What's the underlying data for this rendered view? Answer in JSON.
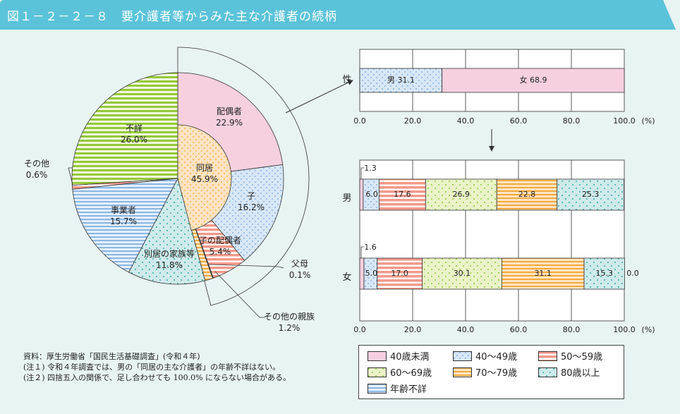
{
  "title": "図１－２－２－８　要介護者等からみた主な介護者の続柄",
  "colors": {
    "title_bar": "#5bc3d9",
    "background": "#e8f4f2"
  },
  "chart_data": [
    {
      "type": "pie",
      "inner": {
        "label": "同居",
        "value": 45.9
      },
      "slices": [
        {
          "label": "配偶者",
          "value": 22.9,
          "pattern": "pink"
        },
        {
          "label": "子",
          "value": 16.2,
          "pattern": "blue-dot"
        },
        {
          "label": "子の配偶者",
          "value": 5.4,
          "pattern": "red-stripe"
        },
        {
          "label": "父母",
          "value": 0.1,
          "pattern": "green-dot"
        },
        {
          "label": "その他の親族",
          "value": 1.2,
          "pattern": "orange-stripe"
        },
        {
          "label": "別居の家族等",
          "value": 11.8,
          "pattern": "teal-dot"
        },
        {
          "label": "事業者",
          "value": 15.7,
          "pattern": "blue-stripe"
        },
        {
          "label": "その他",
          "value": 0.6,
          "pattern": "red-stripe"
        },
        {
          "label": "不詳",
          "value": 26.0,
          "pattern": "green-stripe"
        }
      ],
      "pct_labels": [
        "22.9%",
        "16.2%",
        "5.4%",
        "0.1%",
        "1.2%",
        "11.8%",
        "15.7%",
        "0.6%",
        "26.0%"
      ],
      "inner_pct_label": "45.9%"
    },
    {
      "type": "bar",
      "orientation": "horizontal-stacked",
      "categories": [
        "性"
      ],
      "segments": [
        {
          "label": "男",
          "value": 31.1,
          "pattern": "blue-dot"
        },
        {
          "label": "女",
          "value": 68.9,
          "pattern": "pink"
        }
      ],
      "xlim": [
        0,
        100
      ],
      "ticks": [
        "0.0",
        "20.0",
        "40.0",
        "60.0",
        "80.0",
        "100.0"
      ],
      "unit": "(%)"
    },
    {
      "type": "bar",
      "orientation": "horizontal-stacked",
      "categories": [
        "男",
        "女"
      ],
      "series": [
        {
          "name": "40歳未満",
          "values": [
            1.3,
            1.6
          ],
          "pattern": "pink"
        },
        {
          "name": "40～49歳",
          "values": [
            6.0,
            5.0
          ],
          "pattern": "blue-dot"
        },
        {
          "name": "50～59歳",
          "values": [
            17.6,
            17.0
          ],
          "pattern": "red-stripe"
        },
        {
          "name": "60～69歳",
          "values": [
            26.9,
            30.1
          ],
          "pattern": "green-dot"
        },
        {
          "name": "70～79歳",
          "values": [
            22.8,
            31.1
          ],
          "pattern": "orange-stripe"
        },
        {
          "name": "80歳以上",
          "values": [
            25.3,
            15.3
          ],
          "pattern": "teal-dot"
        },
        {
          "name": "年齢不詳",
          "values": [
            0,
            0.0
          ],
          "pattern": "blue-stripe"
        }
      ],
      "data_labels": [
        [
          "1.3",
          "6.0",
          "17.6",
          "26.9",
          "22.8",
          "25.3",
          ""
        ],
        [
          "1.6",
          "5.0",
          "17.0",
          "30.1",
          "31.1",
          "15.3",
          "0.0"
        ]
      ],
      "xlim": [
        0,
        100
      ],
      "ticks": [
        "0.0",
        "20.0",
        "40.0",
        "60.0",
        "80.0",
        "100.0"
      ],
      "unit": "(%)",
      "legend_position": "bottom"
    }
  ],
  "notes": [
    "資料：厚生労働省「国民生活基礎調査」(令和４年)",
    "(注１) 令和４年調査では、男の「同居の主な介護者」の年齢不詳はない。",
    "(注２) 四捨五入の関係で、足し合わせても 100.0% にならない場合がある。"
  ]
}
